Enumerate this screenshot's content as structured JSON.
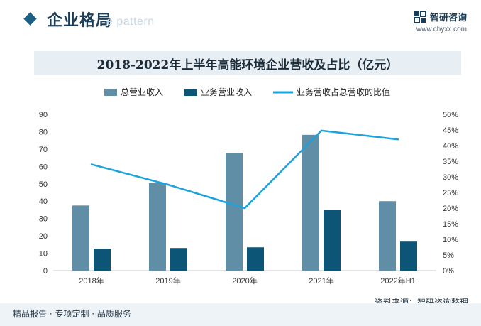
{
  "header": {
    "title": "企业格局",
    "watermark": "e pattern",
    "brand_name": "智研咨询",
    "brand_url": "www.chyxx.com"
  },
  "footer": {
    "slogan": "精品报告 · 专项定制 · 品质服务",
    "source": "资料来源：智研咨询整理"
  },
  "colors": {
    "total": "#5f8ea6",
    "business": "#0d5577",
    "ratio": "#1aa3dd"
  },
  "chart_data": {
    "type": "bar",
    "title": "2018-2022年上半年高能环境企业营收及占比（亿元）",
    "categories": [
      "2018年",
      "2019年",
      "2020年",
      "2021年",
      "2022年H1"
    ],
    "series": [
      {
        "name": "总营业收入",
        "type": "bar",
        "axis": "left",
        "values": [
          37.5,
          50.5,
          67.8,
          78.2,
          40.0
        ]
      },
      {
        "name": "业务营业收入",
        "type": "bar",
        "axis": "left",
        "values": [
          12.6,
          13.0,
          13.4,
          34.8,
          16.7
        ]
      },
      {
        "name": "业务营收占总营收的比值",
        "type": "line",
        "axis": "right",
        "values": [
          34.0,
          27.5,
          20.0,
          44.8,
          42.0
        ]
      }
    ],
    "y_left": {
      "min": 0,
      "max": 90,
      "ticks": [
        "0",
        "10",
        "20",
        "30",
        "40",
        "50",
        "60",
        "70",
        "80",
        "90"
      ]
    },
    "y_right": {
      "min": 0,
      "max": 50,
      "ticks": [
        "0%",
        "5%",
        "10%",
        "15%",
        "20%",
        "25%",
        "30%",
        "35%",
        "40%",
        "45%",
        "50%"
      ]
    },
    "legend_position": "top",
    "grid": false
  }
}
